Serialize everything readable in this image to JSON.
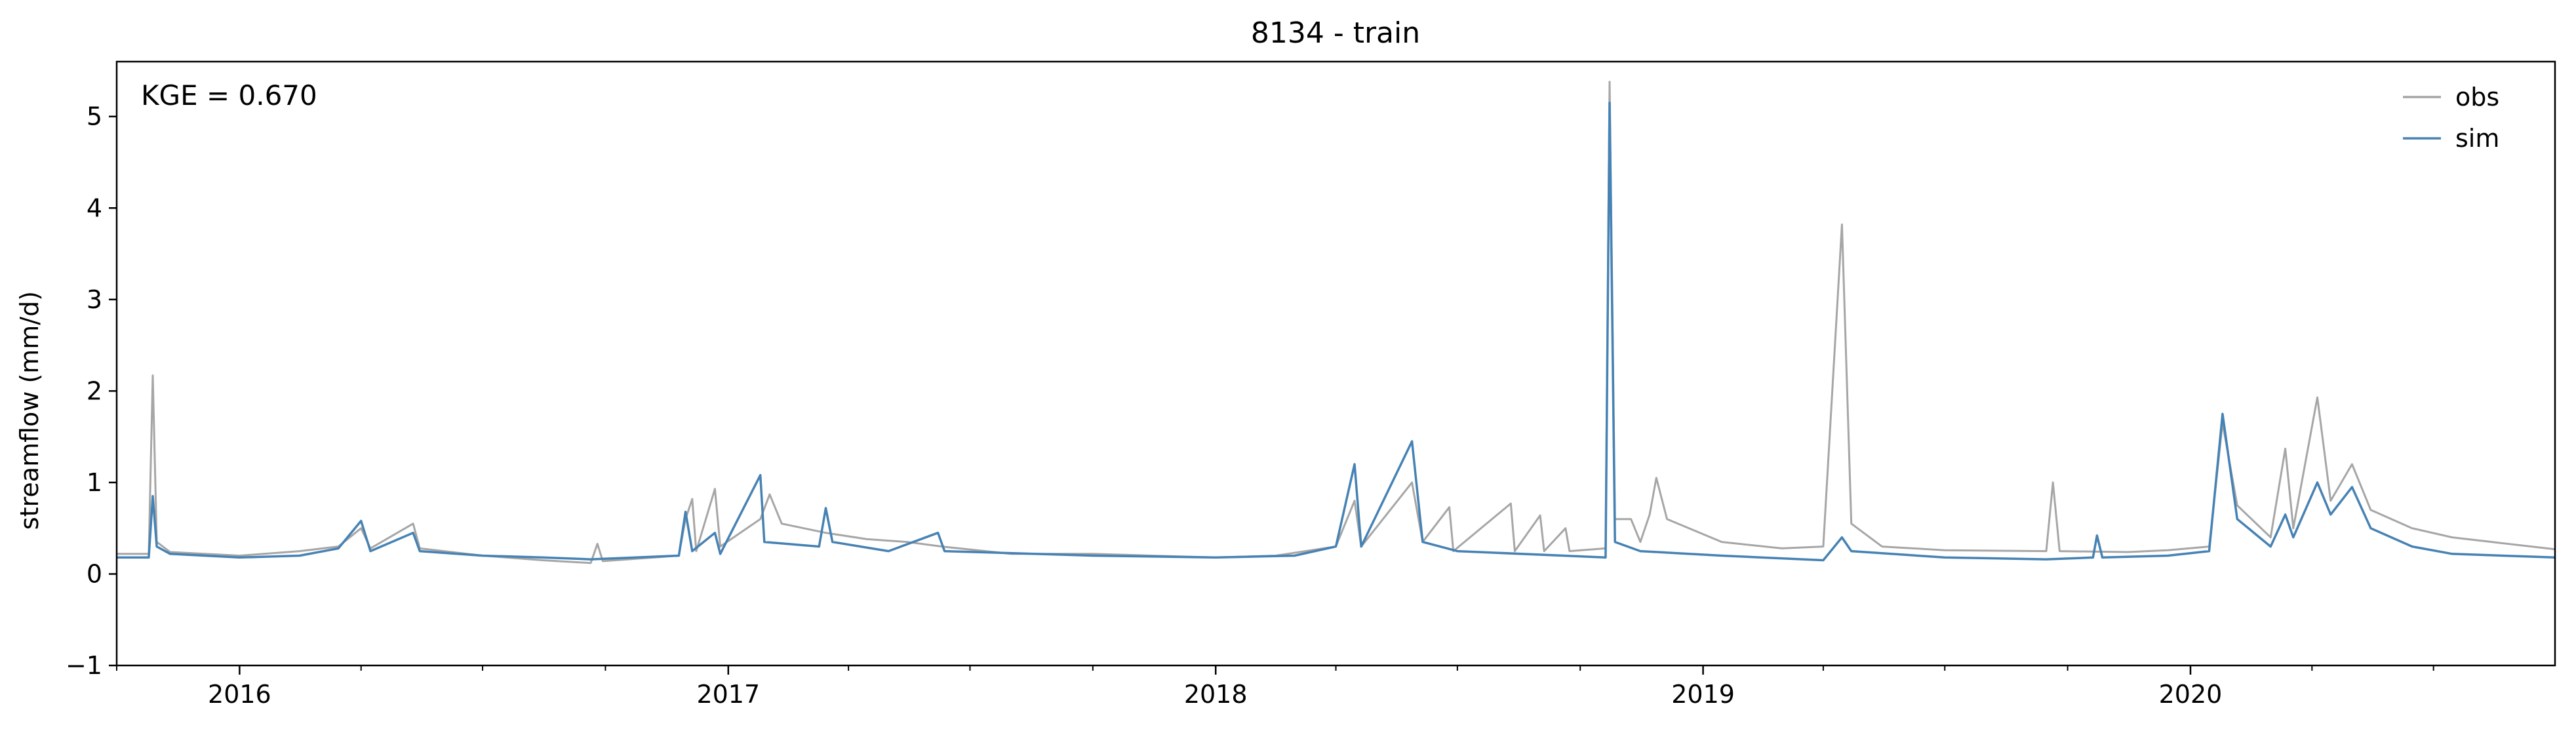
{
  "chart_data": {
    "type": "line",
    "title": "8134 - train",
    "xlabel": "",
    "ylabel": "streamflow (mm/d)",
    "annotation": "KGE = 0.670",
    "xlim": [
      "2015-10-01",
      "2020-09-30"
    ],
    "ylim": [
      -1,
      5.6
    ],
    "yticks": [
      -1,
      0,
      1,
      2,
      3,
      4,
      5
    ],
    "xticks": [
      {
        "label": "2016",
        "date": "2016-01-01"
      },
      {
        "label": "2017",
        "date": "2017-01-01"
      },
      {
        "label": "2018",
        "date": "2018-01-01"
      },
      {
        "label": "2019",
        "date": "2019-01-01"
      },
      {
        "label": "2020",
        "date": "2020-01-01"
      }
    ],
    "grid": false,
    "legend": "top-right",
    "colors": {
      "obs": "#a6a6a6",
      "sim": "#4682b4"
    },
    "series": [
      {
        "name": "obs",
        "points": [
          [
            "2015-10-01",
            0.22
          ],
          [
            "2015-10-25",
            0.22
          ],
          [
            "2015-10-28",
            2.17
          ],
          [
            "2015-10-31",
            0.35
          ],
          [
            "2015-11-10",
            0.24
          ],
          [
            "2016-01-01",
            0.2
          ],
          [
            "2016-02-15",
            0.25
          ],
          [
            "2016-03-15",
            0.3
          ],
          [
            "2016-04-01",
            0.5
          ],
          [
            "2016-04-08",
            0.28
          ],
          [
            "2016-05-10",
            0.55
          ],
          [
            "2016-05-15",
            0.28
          ],
          [
            "2016-07-01",
            0.2
          ],
          [
            "2016-08-15",
            0.15
          ],
          [
            "2016-09-20",
            0.12
          ],
          [
            "2016-09-25",
            0.33
          ],
          [
            "2016-09-29",
            0.14
          ],
          [
            "2016-11-25",
            0.2
          ],
          [
            "2016-11-30",
            0.6
          ],
          [
            "2016-12-05",
            0.82
          ],
          [
            "2016-12-08",
            0.25
          ],
          [
            "2016-12-22",
            0.93
          ],
          [
            "2016-12-26",
            0.3
          ],
          [
            "2017-01-25",
            0.6
          ],
          [
            "2017-02-01",
            0.87
          ],
          [
            "2017-02-10",
            0.55
          ],
          [
            "2017-03-15",
            0.45
          ],
          [
            "2017-04-15",
            0.38
          ],
          [
            "2017-05-15",
            0.35
          ],
          [
            "2017-06-10",
            0.3
          ],
          [
            "2017-08-01",
            0.22
          ],
          [
            "2017-10-01",
            0.22
          ],
          [
            "2018-01-01",
            0.18
          ],
          [
            "2018-02-15",
            0.2
          ],
          [
            "2018-04-01",
            0.3
          ],
          [
            "2018-04-15",
            0.8
          ],
          [
            "2018-04-20",
            0.3
          ],
          [
            "2018-05-28",
            1.0
          ],
          [
            "2018-06-05",
            0.35
          ],
          [
            "2018-06-25",
            0.73
          ],
          [
            "2018-06-28",
            0.25
          ],
          [
            "2018-08-10",
            0.77
          ],
          [
            "2018-08-13",
            0.25
          ],
          [
            "2018-09-01",
            0.64
          ],
          [
            "2018-09-04",
            0.25
          ],
          [
            "2018-09-20",
            0.5
          ],
          [
            "2018-09-23",
            0.25
          ],
          [
            "2018-10-20",
            0.28
          ],
          [
            "2018-10-23",
            5.38
          ],
          [
            "2018-10-27",
            0.6
          ],
          [
            "2018-11-08",
            0.6
          ],
          [
            "2018-11-15",
            0.35
          ],
          [
            "2018-11-22",
            0.65
          ],
          [
            "2018-11-27",
            1.05
          ],
          [
            "2018-12-05",
            0.6
          ],
          [
            "2019-01-15",
            0.35
          ],
          [
            "2019-03-01",
            0.28
          ],
          [
            "2019-04-01",
            0.3
          ],
          [
            "2019-04-15",
            3.82
          ],
          [
            "2019-04-22",
            0.55
          ],
          [
            "2019-05-15",
            0.3
          ],
          [
            "2019-07-01",
            0.26
          ],
          [
            "2019-09-15",
            0.25
          ],
          [
            "2019-09-20",
            1.0
          ],
          [
            "2019-09-25",
            0.25
          ],
          [
            "2019-11-15",
            0.24
          ],
          [
            "2019-12-15",
            0.26
          ],
          [
            "2020-01-15",
            0.3
          ],
          [
            "2020-01-25",
            1.65
          ],
          [
            "2020-02-05",
            0.75
          ],
          [
            "2020-03-01",
            0.4
          ],
          [
            "2020-03-12",
            1.37
          ],
          [
            "2020-03-18",
            0.5
          ],
          [
            "2020-04-05",
            1.93
          ],
          [
            "2020-04-15",
            0.8
          ],
          [
            "2020-05-01",
            1.2
          ],
          [
            "2020-05-15",
            0.7
          ],
          [
            "2020-06-15",
            0.5
          ],
          [
            "2020-07-15",
            0.4
          ],
          [
            "2020-09-30",
            0.27
          ]
        ]
      },
      {
        "name": "sim",
        "points": [
          [
            "2015-10-01",
            0.18
          ],
          [
            "2015-10-25",
            0.18
          ],
          [
            "2015-10-28",
            0.85
          ],
          [
            "2015-10-31",
            0.3
          ],
          [
            "2015-11-10",
            0.22
          ],
          [
            "2016-01-01",
            0.18
          ],
          [
            "2016-02-15",
            0.2
          ],
          [
            "2016-03-15",
            0.28
          ],
          [
            "2016-04-01",
            0.58
          ],
          [
            "2016-04-08",
            0.25
          ],
          [
            "2016-05-10",
            0.45
          ],
          [
            "2016-05-15",
            0.25
          ],
          [
            "2016-07-01",
            0.2
          ],
          [
            "2016-08-15",
            0.18
          ],
          [
            "2016-09-20",
            0.16
          ],
          [
            "2016-11-25",
            0.2
          ],
          [
            "2016-11-30",
            0.68
          ],
          [
            "2016-12-05",
            0.25
          ],
          [
            "2016-12-22",
            0.45
          ],
          [
            "2016-12-26",
            0.22
          ],
          [
            "2017-01-25",
            1.08
          ],
          [
            "2017-01-28",
            0.35
          ],
          [
            "2017-03-10",
            0.3
          ],
          [
            "2017-03-15",
            0.72
          ],
          [
            "2017-03-20",
            0.35
          ],
          [
            "2017-05-01",
            0.25
          ],
          [
            "2017-06-07",
            0.45
          ],
          [
            "2017-06-12",
            0.25
          ],
          [
            "2017-10-01",
            0.2
          ],
          [
            "2018-01-01",
            0.18
          ],
          [
            "2018-03-01",
            0.2
          ],
          [
            "2018-04-01",
            0.3
          ],
          [
            "2018-04-15",
            1.2
          ],
          [
            "2018-04-20",
            0.3
          ],
          [
            "2018-05-28",
            1.45
          ],
          [
            "2018-06-05",
            0.35
          ],
          [
            "2018-07-01",
            0.25
          ],
          [
            "2018-10-20",
            0.18
          ],
          [
            "2018-10-23",
            5.15
          ],
          [
            "2018-10-27",
            0.35
          ],
          [
            "2018-11-15",
            0.25
          ],
          [
            "2019-01-15",
            0.2
          ],
          [
            "2019-04-01",
            0.15
          ],
          [
            "2019-04-15",
            0.4
          ],
          [
            "2019-04-22",
            0.25
          ],
          [
            "2019-07-01",
            0.18
          ],
          [
            "2019-09-15",
            0.16
          ],
          [
            "2019-10-20",
            0.18
          ],
          [
            "2019-10-23",
            0.42
          ],
          [
            "2019-10-27",
            0.18
          ],
          [
            "2019-12-15",
            0.2
          ],
          [
            "2020-01-15",
            0.25
          ],
          [
            "2020-01-25",
            1.75
          ],
          [
            "2020-02-05",
            0.6
          ],
          [
            "2020-03-01",
            0.3
          ],
          [
            "2020-03-12",
            0.65
          ],
          [
            "2020-03-18",
            0.4
          ],
          [
            "2020-04-05",
            1.0
          ],
          [
            "2020-04-15",
            0.65
          ],
          [
            "2020-05-01",
            0.95
          ],
          [
            "2020-05-15",
            0.5
          ],
          [
            "2020-06-15",
            0.3
          ],
          [
            "2020-07-15",
            0.22
          ],
          [
            "2020-09-30",
            0.18
          ]
        ]
      }
    ]
  }
}
